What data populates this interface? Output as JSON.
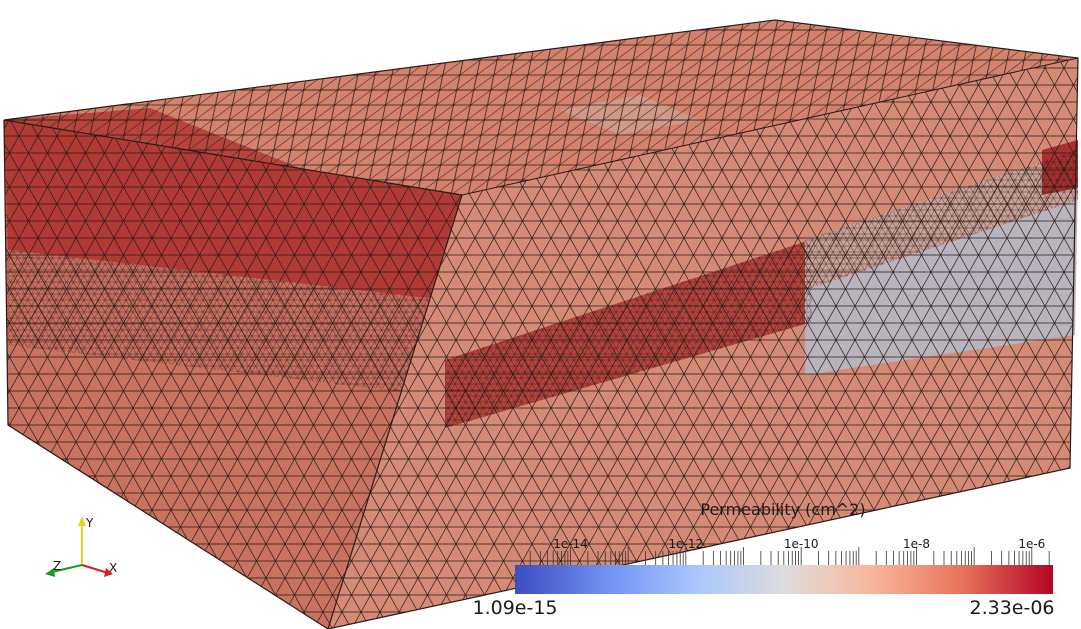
{
  "colorbar": {
    "title": "Permeability (cm^2)",
    "min_label": "1.09e-15",
    "max_label": "2.33e-06",
    "range": [
      1.09e-15,
      2.33e-06
    ],
    "scale": "log",
    "major_ticks": [
      {
        "value": 1e-14,
        "label": "1e-14"
      },
      {
        "value": 1e-12,
        "label": "1e-12"
      },
      {
        "value": 1e-10,
        "label": "1e-10"
      },
      {
        "value": 1e-08,
        "label": "1e-8"
      },
      {
        "value": 1e-06,
        "label": "1e-6"
      }
    ],
    "colormap": [
      "#3b4cc0",
      "#6f92f3",
      "#aac7fd",
      "#dddcdc",
      "#f7b89c",
      "#e7745b",
      "#b40426"
    ]
  },
  "axes_triad": {
    "x_label": "X",
    "y_label": "Y",
    "z_label": "Z",
    "x_color": "#d62020",
    "y_color": "#e2d81a",
    "z_color": "#1e9a1e"
  },
  "mesh_colors": {
    "dark_red": "#b23a34",
    "mid_red": "#c4594b",
    "salmon": "#d98a74",
    "light_salmon": "#e3a58e",
    "grey_blue": "#a7b3c6",
    "edge": "#1a1010"
  }
}
